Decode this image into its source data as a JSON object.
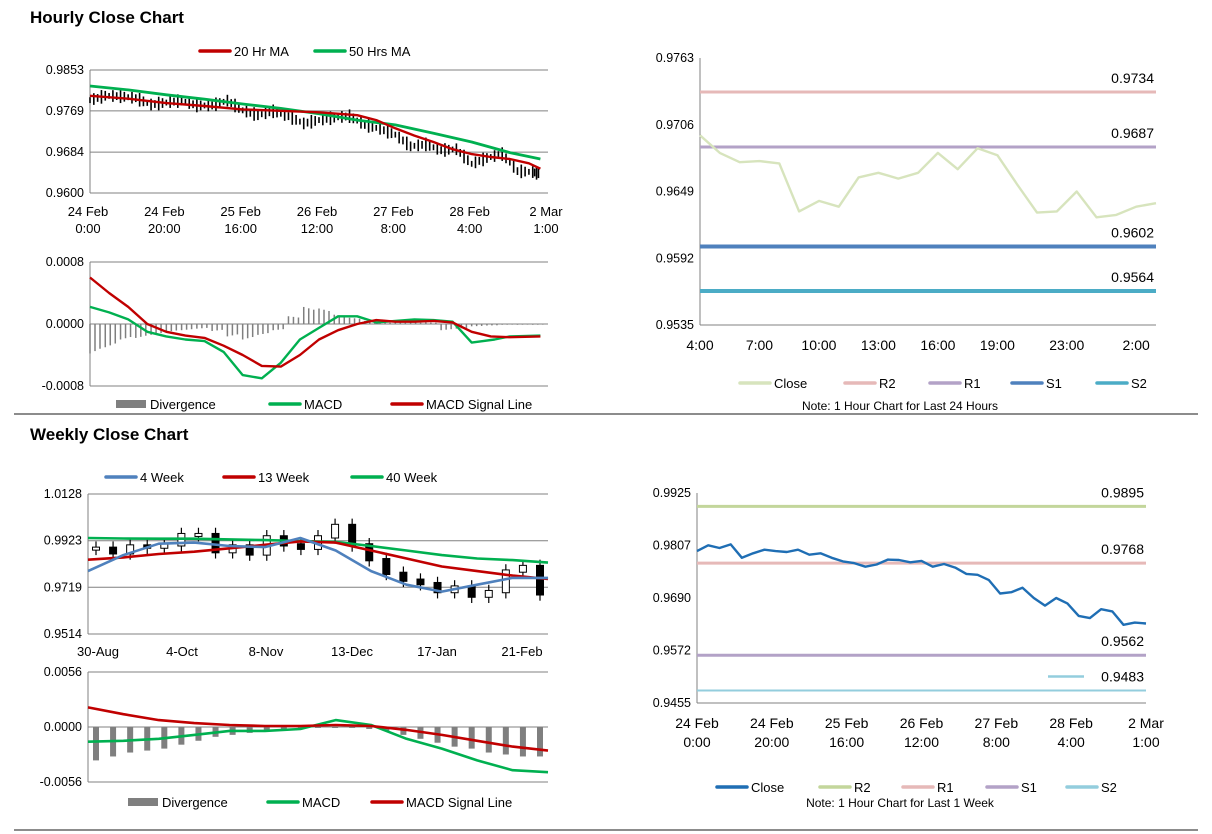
{
  "titles": {
    "hourly": "Hourly Close Chart",
    "weekly": "Weekly Close Chart"
  },
  "colors": {
    "ma20": "#c00000",
    "ma50": "#00b050",
    "candle": "#000000",
    "divergence": "#7f7f7f",
    "macd": "#00b050",
    "signal": "#c00000",
    "close_light": "#d7e4bd",
    "r2_pink": "#e6b9b8",
    "r1_purple": "#b3a2c7",
    "s1_blue": "#4f81bd",
    "s2_teal": "#4bacc6",
    "close_blue": "#1f6eb4",
    "r2_green": "#c3d69b",
    "s2_lightblue": "#93cddd",
    "wk4": "#4f81bd",
    "grid": "#808080"
  },
  "chart_data": [
    {
      "id": "hourly_price",
      "type": "line",
      "title": "",
      "legend": [
        "20 Hr MA",
        "50 Hrs MA"
      ],
      "legend_position": "top",
      "x_tick_labels": [
        [
          "24 Feb",
          "0:00"
        ],
        [
          "24 Feb",
          "20:00"
        ],
        [
          "25 Feb",
          "16:00"
        ],
        [
          "26 Feb",
          "12:00"
        ],
        [
          "27 Feb",
          "8:00"
        ],
        [
          "28 Feb",
          "4:00"
        ],
        [
          "2 Mar",
          "1:00"
        ]
      ],
      "y_tick_labels": [
        "0.9853",
        "0.9769",
        "0.9684",
        "0.9600"
      ],
      "ylim": [
        0.96,
        0.9853
      ],
      "xlim": [
        0,
        120
      ],
      "grid": "horizontal",
      "series": [
        {
          "name": "20 Hr MA",
          "x": [
            0,
            10,
            20,
            30,
            40,
            50,
            60,
            70,
            75,
            80,
            85,
            90,
            95,
            100,
            105,
            110,
            115,
            118
          ],
          "y": [
            0.98,
            0.9794,
            0.9785,
            0.9779,
            0.9772,
            0.9769,
            0.9766,
            0.976,
            0.975,
            0.9733,
            0.9718,
            0.9705,
            0.969,
            0.968,
            0.9674,
            0.967,
            0.9661,
            0.965
          ]
        },
        {
          "name": "50 Hrs MA",
          "x": [
            0,
            10,
            20,
            30,
            40,
            50,
            60,
            70,
            80,
            90,
            100,
            110,
            118
          ],
          "y": [
            0.982,
            0.9812,
            0.9802,
            0.9793,
            0.9783,
            0.9774,
            0.9763,
            0.975,
            0.974,
            0.9723,
            0.9705,
            0.9683,
            0.967
          ]
        },
        {
          "name": "Hourly Close",
          "x": [
            0,
            4,
            8,
            12,
            16,
            20,
            24,
            28,
            32,
            36,
            40,
            44,
            48,
            52,
            56,
            60,
            64,
            68,
            72,
            76,
            80,
            84,
            88,
            92,
            96,
            100,
            104,
            108,
            112,
            116,
            118
          ],
          "y": [
            0.9791,
            0.98,
            0.9799,
            0.9795,
            0.9782,
            0.9786,
            0.979,
            0.978,
            0.978,
            0.979,
            0.977,
            0.976,
            0.9768,
            0.9758,
            0.9743,
            0.975,
            0.9755,
            0.9758,
            0.974,
            0.9732,
            0.972,
            0.9696,
            0.97,
            0.9688,
            0.969,
            0.966,
            0.9672,
            0.968,
            0.9645,
            0.9643,
            0.964
          ]
        }
      ]
    },
    {
      "id": "hourly_macd",
      "type": "line",
      "title": "",
      "legend": [
        "Divergence",
        "MACD",
        "MACD Signal Line"
      ],
      "legend_position": "bottom",
      "y_tick_labels": [
        "0.0008",
        "0.0000",
        "-0.0008"
      ],
      "ylim": [
        -0.0008,
        0.0008
      ],
      "xlim": [
        0,
        120
      ],
      "grid": "horizontal",
      "series": [
        {
          "name": "MACD",
          "x": [
            0,
            5,
            10,
            15,
            20,
            25,
            30,
            35,
            40,
            45,
            50,
            55,
            60,
            65,
            70,
            75,
            80,
            85,
            90,
            95,
            100,
            103,
            106,
            110,
            118
          ],
          "y": [
            0.00022,
            0.00015,
            6e-05,
            -0.0001,
            -0.00016,
            -0.0002,
            -0.00022,
            -0.00036,
            -0.00066,
            -0.0007,
            -0.0005,
            -0.0002,
            -5e-05,
            0.0001,
            0.0001,
            2e-05,
            4e-05,
            6e-05,
            5e-05,
            3e-05,
            -0.00024,
            -0.00022,
            -0.0002,
            -0.00016,
            -0.00015
          ]
        },
        {
          "name": "MACD Signal Line",
          "x": [
            0,
            5,
            10,
            15,
            20,
            25,
            30,
            35,
            40,
            45,
            50,
            55,
            60,
            65,
            70,
            75,
            80,
            85,
            90,
            95,
            100,
            105,
            110,
            118
          ],
          "y": [
            0.0006,
            0.0004,
            0.00022,
            0.0,
            -0.0001,
            -0.00015,
            -0.00018,
            -0.00028,
            -0.0004,
            -0.00054,
            -0.00055,
            -0.0004,
            -0.0002,
            -8e-05,
            0.0,
            5e-05,
            3e-05,
            3e-05,
            4e-05,
            2e-05,
            -0.0001,
            -0.00016,
            -0.00017,
            -0.00016
          ]
        },
        {
          "name": "Divergence",
          "x": [
            0,
            4,
            8,
            12,
            16,
            20,
            24,
            28,
            32,
            36,
            40,
            44,
            48,
            52,
            56,
            60,
            64,
            68,
            72,
            76,
            80,
            84,
            88,
            92,
            96,
            100,
            104,
            108,
            112,
            116
          ],
          "y": [
            -0.00038,
            -0.0003,
            -0.0002,
            -0.00018,
            -0.00014,
            -0.0001,
            -8e-05,
            -6e-05,
            -9e-05,
            -0.00016,
            -0.0002,
            -0.00014,
            -8e-05,
            0.0001,
            0.00022,
            0.0002,
            0.00012,
            8e-05,
            4e-05,
            2e-05,
            2e-05,
            2e-05,
            2e-05,
            -8e-05,
            -6e-05,
            -3e-05,
            -2e-05,
            -1e-05,
            -1e-05,
            -1e-05
          ]
        }
      ]
    },
    {
      "id": "hourly_24h",
      "type": "line",
      "title": "",
      "legend": [
        "Close",
        "R2",
        "R1",
        "S1",
        "S2"
      ],
      "legend_position": "bottom",
      "note": "Note: 1 Hour Chart for Last 24 Hours",
      "x_tick_labels": [
        "4:00",
        "7:00",
        "10:00",
        "13:00",
        "16:00",
        "19:00",
        "23:00",
        "2:00"
      ],
      "y_tick_labels": [
        "0.9763",
        "0.9706",
        "0.9649",
        "0.9592",
        "0.9535"
      ],
      "ylim": [
        0.9535,
        0.9763
      ],
      "xlim": [
        0,
        23
      ],
      "grid": "none",
      "levels": [
        {
          "name": "R2",
          "value": 0.9734,
          "label": "0.9734"
        },
        {
          "name": "R1",
          "value": 0.9687,
          "label": "0.9687"
        },
        {
          "name": "S1",
          "value": 0.9602,
          "label": "0.9602"
        },
        {
          "name": "S2",
          "value": 0.9564,
          "label": "0.9564"
        }
      ],
      "series": [
        {
          "name": "Close",
          "x": [
            0,
            1,
            2,
            3,
            4,
            5,
            6,
            7,
            8,
            9,
            10,
            11,
            12,
            13,
            14,
            15,
            16,
            17,
            18,
            19,
            20,
            21,
            22,
            23
          ],
          "y": [
            0.9697,
            0.9682,
            0.9674,
            0.9675,
            0.9673,
            0.9632,
            0.9641,
            0.9636,
            0.9661,
            0.9665,
            0.966,
            0.9665,
            0.9682,
            0.9668,
            0.9686,
            0.968,
            0.9655,
            0.9631,
            0.9632,
            0.9649,
            0.9627,
            0.9629,
            0.9636,
            0.9639
          ]
        }
      ]
    },
    {
      "id": "weekly_price",
      "type": "line",
      "title": "",
      "legend": [
        "4 Week",
        "13 Week",
        "40 Week"
      ],
      "legend_position": "top",
      "x_tick_labels": [
        "30-Aug",
        "4-Oct",
        "8-Nov",
        "13-Dec",
        "17-Jan",
        "21-Feb"
      ],
      "y_tick_labels": [
        "1.0128",
        "0.9923",
        "0.9719",
        "0.9514"
      ],
      "ylim": [
        0.9514,
        1.0128
      ],
      "xlim": [
        0,
        26
      ],
      "grid": "horizontal",
      "series": [
        {
          "name": "4 Week",
          "x": [
            0,
            2,
            4,
            6,
            8,
            10,
            12,
            14,
            16,
            18,
            20,
            22,
            24,
            26
          ],
          "y": [
            0.979,
            0.986,
            0.991,
            0.9915,
            0.99,
            0.9895,
            0.9935,
            0.988,
            0.979,
            0.973,
            0.97,
            0.973,
            0.976,
            0.976
          ]
        },
        {
          "name": "13 Week",
          "x": [
            0,
            2,
            4,
            6,
            8,
            10,
            12,
            14,
            16,
            18,
            20,
            22,
            24,
            26
          ],
          "y": [
            0.984,
            0.985,
            0.9865,
            0.9875,
            0.989,
            0.9905,
            0.992,
            0.9915,
            0.988,
            0.9845,
            0.981,
            0.979,
            0.977,
            0.9755
          ]
        },
        {
          "name": "40 Week",
          "x": [
            0,
            2,
            4,
            6,
            8,
            10,
            12,
            14,
            16,
            18,
            20,
            22,
            24,
            26
          ],
          "y": [
            0.9935,
            0.9933,
            0.9932,
            0.9932,
            0.9929,
            0.9926,
            0.9922,
            0.9918,
            0.99,
            0.988,
            0.986,
            0.9845,
            0.9838,
            0.9827
          ]
        },
        {
          "name": "Weekly Close",
          "x": [
            0,
            1,
            2,
            3,
            4,
            5,
            6,
            7,
            8,
            9,
            10,
            11,
            12,
            13,
            14,
            15,
            16,
            17,
            18,
            19,
            20,
            21,
            22,
            23,
            24,
            25,
            26
          ],
          "y": [
            0.989,
            0.987,
            0.99,
            0.9895,
            0.9905,
            0.995,
            0.995,
            0.9875,
            0.99,
            0.9865,
            0.994,
            0.9905,
            0.989,
            0.994,
            0.999,
            0.9905,
            0.984,
            0.978,
            0.975,
            0.9735,
            0.97,
            0.972,
            0.968,
            0.97,
            0.979,
            0.981,
            0.969
          ]
        }
      ]
    },
    {
      "id": "weekly_macd",
      "type": "line",
      "title": "",
      "legend": [
        "Divergence",
        "MACD",
        "MACD Signal Line"
      ],
      "legend_position": "bottom",
      "y_tick_labels": [
        "0.0056",
        "0.0000",
        "-0.0056"
      ],
      "ylim": [
        -0.0056,
        0.0056
      ],
      "xlim": [
        0,
        26
      ],
      "grid": "horizontal",
      "series": [
        {
          "name": "MACD",
          "x": [
            0,
            2,
            4,
            6,
            8,
            10,
            12,
            14,
            16,
            18,
            20,
            22,
            24,
            26
          ],
          "y": [
            -0.0015,
            -0.0014,
            -0.0012,
            -0.0008,
            -0.0004,
            -0.0004,
            -0.0002,
            0.0007,
            0.0002,
            -0.0012,
            -0.0022,
            -0.0034,
            -0.0044,
            -0.0046
          ]
        },
        {
          "name": "MACD Signal Line",
          "x": [
            0,
            2,
            4,
            6,
            8,
            10,
            12,
            14,
            16,
            18,
            20,
            22,
            24,
            26
          ],
          "y": [
            0.002,
            0.0013,
            0.0007,
            0.0004,
            0.0002,
            0.0001,
            0.0001,
            0.0002,
            0.0001,
            -0.0003,
            -0.0008,
            -0.0014,
            -0.002,
            -0.0024
          ]
        },
        {
          "name": "Divergence",
          "x": [
            0,
            1,
            2,
            3,
            4,
            5,
            6,
            7,
            8,
            9,
            10,
            11,
            12,
            13,
            14,
            15,
            16,
            17,
            18,
            19,
            20,
            21,
            22,
            23,
            24,
            25,
            26
          ],
          "y": [
            -0.0034,
            -0.003,
            -0.0026,
            -0.0024,
            -0.0022,
            -0.0018,
            -0.0014,
            -0.001,
            -0.0008,
            -0.0006,
            -0.0005,
            -0.0004,
            -0.0002,
            0.0,
            0.0,
            0.0,
            -0.0002,
            -0.0004,
            -0.0008,
            -0.0012,
            -0.0016,
            -0.002,
            -0.0022,
            -0.0026,
            -0.0028,
            -0.003,
            -0.003
          ]
        }
      ]
    },
    {
      "id": "weekly_1w",
      "type": "line",
      "title": "",
      "legend": [
        "Close",
        "R2",
        "R1",
        "S1",
        "S2"
      ],
      "legend_position": "bottom",
      "note": "Note: 1 Hour Chart for Last 1 Week",
      "x_tick_labels": [
        [
          "24 Feb",
          "0:00"
        ],
        [
          "24 Feb",
          "20:00"
        ],
        [
          "25 Feb",
          "16:00"
        ],
        [
          "26 Feb",
          "12:00"
        ],
        [
          "27 Feb",
          "8:00"
        ],
        [
          "28 Feb",
          "4:00"
        ],
        [
          "2 Mar",
          "1:00"
        ]
      ],
      "y_tick_labels": [
        "0.9925",
        "0.9807",
        "0.9690",
        "0.9572",
        "0.9455"
      ],
      "ylim": [
        0.9455,
        0.9925
      ],
      "xlim": [
        0,
        120
      ],
      "grid": "none",
      "levels": [
        {
          "name": "R2",
          "value": 0.9895,
          "label": "0.9895"
        },
        {
          "name": "R1",
          "value": 0.9768,
          "label": "0.9768"
        },
        {
          "name": "S1",
          "value": 0.9562,
          "label": "0.9562"
        },
        {
          "name": "S2",
          "value": 0.9483,
          "label": "0.9483"
        }
      ],
      "series": [
        {
          "name": "Close",
          "x": [
            0,
            3,
            6,
            9,
            12,
            15,
            18,
            21,
            24,
            27,
            30,
            33,
            36,
            39,
            42,
            45,
            48,
            51,
            54,
            57,
            60,
            63,
            66,
            69,
            72,
            75,
            78,
            81,
            84,
            87,
            90,
            93,
            96,
            99,
            102,
            105,
            108,
            111,
            114,
            117,
            120
          ],
          "y": [
            0.9795,
            0.9808,
            0.9802,
            0.981,
            0.978,
            0.979,
            0.9798,
            0.9795,
            0.9793,
            0.9798,
            0.9787,
            0.979,
            0.978,
            0.9772,
            0.9768,
            0.976,
            0.9765,
            0.9776,
            0.9775,
            0.977,
            0.9773,
            0.976,
            0.9766,
            0.9758,
            0.9744,
            0.9742,
            0.973,
            0.97,
            0.9703,
            0.9713,
            0.969,
            0.9673,
            0.969,
            0.9678,
            0.965,
            0.9645,
            0.9665,
            0.966,
            0.963,
            0.9635,
            0.9633
          ]
        }
      ]
    }
  ]
}
